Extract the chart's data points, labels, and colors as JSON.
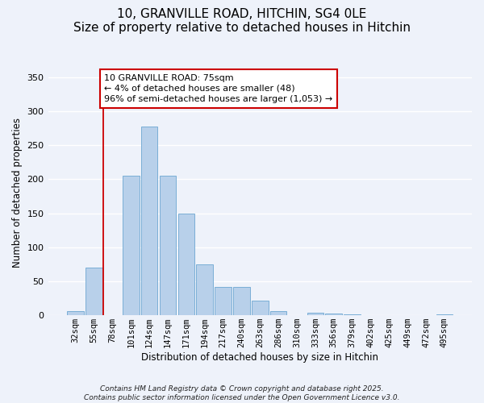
{
  "title": "10, GRANVILLE ROAD, HITCHIN, SG4 0LE",
  "subtitle": "Size of property relative to detached houses in Hitchin",
  "xlabel": "Distribution of detached houses by size in Hitchin",
  "ylabel": "Number of detached properties",
  "bar_labels": [
    "32sqm",
    "55sqm",
    "78sqm",
    "101sqm",
    "124sqm",
    "147sqm",
    "171sqm",
    "194sqm",
    "217sqm",
    "240sqm",
    "263sqm",
    "286sqm",
    "310sqm",
    "333sqm",
    "356sqm",
    "379sqm",
    "402sqm",
    "425sqm",
    "449sqm",
    "472sqm",
    "495sqm"
  ],
  "bar_values": [
    6,
    70,
    0,
    205,
    277,
    205,
    150,
    75,
    42,
    42,
    21,
    6,
    0,
    4,
    2,
    1,
    0,
    0,
    0,
    0,
    1
  ],
  "bar_color": "#b8d0ea",
  "bar_edge_color": "#7aaed6",
  "vline_x": 2,
  "vline_color": "#cc0000",
  "annotation_text": "10 GRANVILLE ROAD: 75sqm\n← 4% of detached houses are smaller (48)\n96% of semi-detached houses are larger (1,053) →",
  "annotation_box_color": "#ffffff",
  "annotation_box_edge": "#cc0000",
  "ylim": [
    0,
    360
  ],
  "yticks": [
    0,
    50,
    100,
    150,
    200,
    250,
    300,
    350
  ],
  "footer_line1": "Contains HM Land Registry data © Crown copyright and database right 2025.",
  "footer_line2": "Contains public sector information licensed under the Open Government Licence v3.0.",
  "background_color": "#eef2fa",
  "title_fontsize": 11,
  "axis_label_fontsize": 8.5,
  "tick_fontsize": 7.5,
  "annotation_fontsize": 8,
  "footer_fontsize": 6.5
}
